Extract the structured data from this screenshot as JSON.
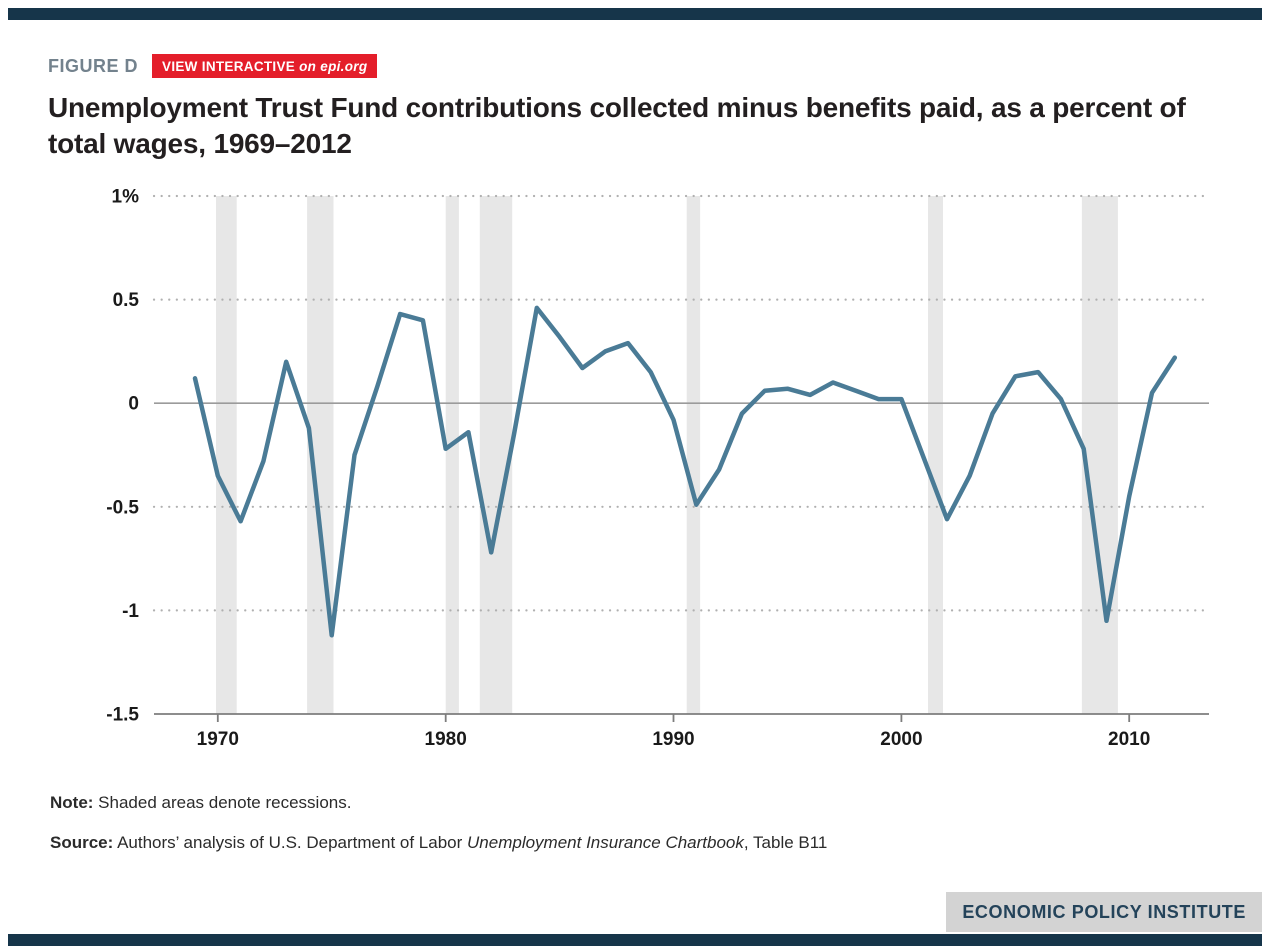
{
  "figure": {
    "label": "FIGURE D",
    "badge_prefix": "VIEW INTERACTIVE ",
    "badge_suffix": "on epi.org"
  },
  "title": "Unemployment Trust Fund contributions collected minus benefits paid, as a percent of total wages, 1969–2012",
  "note": {
    "label": "Note:",
    "text": " Shaded areas denote recessions."
  },
  "source": {
    "label": "Source:",
    "prefix": " Authors’ analysis of U.S. Department of Labor ",
    "italic": "Unemployment Insurance Chartbook",
    "suffix": ", Table B11"
  },
  "footer": {
    "brand": "ECONOMIC POLICY INSTITUTE"
  },
  "colors": {
    "line": "#4a7b96",
    "recession": "#e7e7e7",
    "grid_dotted": "#b0b0b0",
    "zero_line": "#9b9b9b",
    "axis": "#7d7d7d",
    "axis_text": "#1a1a1a",
    "badge_red": "#e41e2a",
    "bar_navy": "#16354a",
    "brand_bg": "#d3d3d3",
    "brand_text": "#24435a"
  },
  "chart_data": {
    "type": "line",
    "title": "Unemployment Trust Fund contributions collected minus benefits paid, as a percent of total wages, 1969–2012",
    "ylabel": "Percent of total wages",
    "x": [
      1969,
      1970,
      1971,
      1972,
      1973,
      1974,
      1975,
      1976,
      1977,
      1978,
      1979,
      1980,
      1981,
      1982,
      1983,
      1984,
      1985,
      1986,
      1987,
      1988,
      1989,
      1990,
      1991,
      1992,
      1993,
      1994,
      1995,
      1996,
      1997,
      1998,
      1999,
      2000,
      2001,
      2002,
      2003,
      2004,
      2005,
      2006,
      2007,
      2008,
      2009,
      2010,
      2011,
      2012
    ],
    "values": [
      0.12,
      -0.35,
      -0.57,
      -0.28,
      0.2,
      -0.12,
      -1.12,
      -0.25,
      0.08,
      0.43,
      0.4,
      -0.22,
      -0.14,
      -0.72,
      -0.15,
      0.46,
      0.32,
      0.17,
      0.25,
      0.29,
      0.15,
      -0.08,
      -0.49,
      -0.32,
      -0.05,
      0.06,
      0.07,
      0.04,
      0.1,
      0.06,
      0.02,
      0.02,
      -0.27,
      -0.56,
      -0.35,
      -0.05,
      0.13,
      0.15,
      0.02,
      -0.22,
      -1.05,
      -0.45,
      0.05,
      0.22
    ],
    "xlim": [
      1967.2,
      2013.5
    ],
    "ylim": [
      -1.5,
      1.0
    ],
    "yticks": [
      {
        "v": 1,
        "label": "1%"
      },
      {
        "v": 0.5,
        "label": "0.5"
      },
      {
        "v": 0,
        "label": "0"
      },
      {
        "v": -0.5,
        "label": "-0.5"
      },
      {
        "v": -1,
        "label": "-1"
      },
      {
        "v": -1.5,
        "label": "-1.5"
      }
    ],
    "xticks": [
      1970,
      1980,
      1990,
      2000,
      2010
    ],
    "recessions": [
      [
        1969.92,
        1970.83
      ],
      [
        1973.92,
        1975.08
      ],
      [
        1980.0,
        1980.58
      ],
      [
        1981.5,
        1982.92
      ],
      [
        1990.58,
        1991.17
      ],
      [
        2001.17,
        2001.83
      ],
      [
        2007.92,
        2009.5
      ]
    ],
    "grid": "horizontal dotted",
    "legend": "none"
  }
}
